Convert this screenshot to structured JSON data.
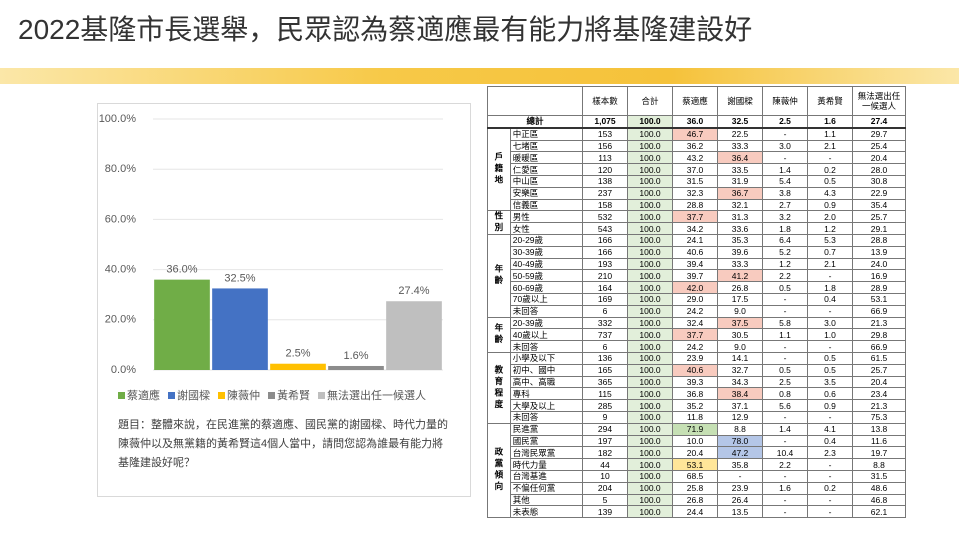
{
  "title": "2022基隆市長選舉，民眾認為蔡適應最有能力將基隆建設好",
  "chart_data": {
    "type": "bar",
    "categories": [
      "蔡適應",
      "謝國樑",
      "陳薇仲",
      "黃希賢",
      "無法選出任一候選人"
    ],
    "values": [
      36.0,
      32.5,
      2.5,
      1.6,
      27.4
    ],
    "value_labels": [
      "36.0%",
      "32.5%",
      "2.5%",
      "1.6%",
      "27.4%"
    ],
    "colors": [
      "#70ad47",
      "#4472c4",
      "#ffc000",
      "#8c8c8c",
      "#bfbfbf"
    ],
    "ylim": [
      0,
      100
    ],
    "yticks": [
      {
        "value": 0,
        "label": "0.0%"
      },
      {
        "value": 20,
        "label": "20.0%"
      },
      {
        "value": 40,
        "label": "40.0%"
      },
      {
        "value": 60,
        "label": "60.0%"
      },
      {
        "value": 80,
        "label": "80.0%"
      },
      {
        "value": 100,
        "label": "100.0%"
      }
    ],
    "grid": true
  },
  "question": "題目：整體來說，在民進黨的蔡適應、國民黨的謝國樑、時代力量的陳薇仲以及無黨籍的黃希賢這4個人當中，請問您認為誰最有能力將基隆建設好呢？",
  "table": {
    "header": [
      "樣本數",
      "合計",
      "蔡適應",
      "謝國樑",
      "陳薇仲",
      "黃希賢",
      "無法選出任一候選人"
    ],
    "total": {
      "label": "總計",
      "cells": [
        "1,075",
        "100.0",
        "36.0",
        "32.5",
        "2.5",
        "1.6",
        "27.4"
      ]
    },
    "groups": [
      {
        "name": "戶籍地",
        "rows": [
          {
            "label": "中正區",
            "cells": [
              "153",
              "100.0",
              {
                "text": "46.7",
                "color": "#f8cbbf"
              },
              "22.5",
              "-",
              "1.1",
              "29.7"
            ]
          },
          {
            "label": "七堵區",
            "cells": [
              "156",
              "100.0",
              "36.2",
              "33.3",
              "3.0",
              "2.1",
              "25.4"
            ]
          },
          {
            "label": "暖暖區",
            "cells": [
              "113",
              "100.0",
              "43.2",
              {
                "text": "36.4",
                "color": "#f8cbbf"
              },
              "-",
              "-",
              "20.4"
            ]
          },
          {
            "label": "仁愛區",
            "cells": [
              "120",
              "100.0",
              "37.0",
              "33.5",
              "1.4",
              "0.2",
              "28.0"
            ]
          },
          {
            "label": "中山區",
            "cells": [
              "138",
              "100.0",
              "31.5",
              "31.9",
              "5.4",
              "0.5",
              "30.8"
            ]
          },
          {
            "label": "安樂區",
            "cells": [
              "237",
              "100.0",
              "32.3",
              {
                "text": "36.7",
                "color": "#f8cbbf"
              },
              "3.8",
              "4.3",
              "22.9"
            ]
          },
          {
            "label": "信義區",
            "cells": [
              "158",
              "100.0",
              "28.8",
              "32.1",
              "2.7",
              "0.9",
              "35.4"
            ]
          }
        ]
      },
      {
        "name": "性別",
        "rows": [
          {
            "label": "男性",
            "cells": [
              "532",
              "100.0",
              {
                "text": "37.7",
                "color": "#f8cbbf"
              },
              "31.3",
              "3.2",
              "2.0",
              "25.7"
            ]
          },
          {
            "label": "女性",
            "cells": [
              "543",
              "100.0",
              "34.2",
              "33.6",
              "1.8",
              "1.2",
              "29.1"
            ]
          }
        ]
      },
      {
        "name": "年齡",
        "rows": [
          {
            "label": "20-29歲",
            "cells": [
              "166",
              "100.0",
              "24.1",
              "35.3",
              "6.4",
              "5.3",
              "28.8"
            ]
          },
          {
            "label": "30-39歲",
            "cells": [
              "166",
              "100.0",
              "40.6",
              "39.6",
              "5.2",
              "0.7",
              "13.9"
            ]
          },
          {
            "label": "40-49歲",
            "cells": [
              "193",
              "100.0",
              "39.4",
              "33.3",
              "1.2",
              "2.1",
              "24.0"
            ]
          },
          {
            "label": "50-59歲",
            "cells": [
              "210",
              "100.0",
              "39.7",
              {
                "text": "41.2",
                "color": "#f8cbbf"
              },
              "2.2",
              "-",
              "16.9"
            ]
          },
          {
            "label": "60-69歲",
            "cells": [
              "164",
              "100.0",
              {
                "text": "42.0",
                "color": "#f8cbbf"
              },
              "26.8",
              "0.5",
              "1.8",
              "28.9"
            ]
          },
          {
            "label": "70歲以上",
            "cells": [
              "169",
              "100.0",
              "29.0",
              "17.5",
              "-",
              "0.4",
              "53.1"
            ]
          },
          {
            "label": "未回答",
            "cells": [
              "6",
              "100.0",
              "24.2",
              "9.0",
              "-",
              "-",
              "66.9"
            ]
          }
        ]
      },
      {
        "name": "年齡",
        "rows": [
          {
            "label": "20-39歲",
            "cells": [
              "332",
              "100.0",
              "32.4",
              {
                "text": "37.5",
                "color": "#f8cbbf"
              },
              "5.8",
              "3.0",
              "21.3"
            ]
          },
          {
            "label": "40歲以上",
            "cells": [
              "737",
              "100.0",
              {
                "text": "37.7",
                "color": "#f8cbbf"
              },
              "30.5",
              "1.1",
              "1.0",
              "29.8"
            ]
          },
          {
            "label": "未回答",
            "cells": [
              "6",
              "100.0",
              "24.2",
              "9.0",
              "-",
              "-",
              "66.9"
            ]
          }
        ]
      },
      {
        "name": "教育程度",
        "rows": [
          {
            "label": "小學及以下",
            "cells": [
              "136",
              "100.0",
              "23.9",
              "14.1",
              "-",
              "0.5",
              "61.5"
            ]
          },
          {
            "label": "初中、國中",
            "cells": [
              "165",
              "100.0",
              {
                "text": "40.6",
                "color": "#f8cbbf"
              },
              "32.7",
              "0.5",
              "0.5",
              "25.7"
            ]
          },
          {
            "label": "高中、高職",
            "cells": [
              "365",
              "100.0",
              "39.3",
              "34.3",
              "2.5",
              "3.5",
              "20.4"
            ]
          },
          {
            "label": "專科",
            "cells": [
              "115",
              "100.0",
              "36.8",
              {
                "text": "38.4",
                "color": "#f8cbbf"
              },
              "0.8",
              "0.6",
              "23.4"
            ]
          },
          {
            "label": "大學及以上",
            "cells": [
              "285",
              "100.0",
              "35.2",
              "37.1",
              "5.6",
              "0.9",
              "21.3"
            ]
          },
          {
            "label": "未回答",
            "cells": [
              "9",
              "100.0",
              "11.8",
              "12.9",
              "-",
              "-",
              "75.3"
            ]
          }
        ]
      },
      {
        "name": "政黨傾向",
        "rows": [
          {
            "label": "民進黨",
            "cells": [
              "294",
              "100.0",
              {
                "text": "71.9",
                "color": "#c6e0b4"
              },
              "8.8",
              "1.4",
              "4.1",
              "13.8"
            ]
          },
          {
            "label": "國民黨",
            "cells": [
              "197",
              "100.0",
              "10.0",
              {
                "text": "78.0",
                "color": "#b4c6e7"
              },
              "-",
              "0.4",
              "11.6"
            ]
          },
          {
            "label": "台灣民眾黨",
            "cells": [
              "182",
              "100.0",
              "20.4",
              {
                "text": "47.2",
                "color": "#b4c6e7"
              },
              "10.4",
              "2.3",
              "19.7"
            ]
          },
          {
            "label": "時代力量",
            "cells": [
              "44",
              "100.0",
              {
                "text": "53.1",
                "color": "#ffe699"
              },
              "35.8",
              "2.2",
              "-",
              "8.8"
            ]
          },
          {
            "label": "台灣基進",
            "cells": [
              "10",
              "100.0",
              "68.5",
              "-",
              "-",
              "-",
              "31.5"
            ]
          },
          {
            "label": "不偏任何黨",
            "cells": [
              "204",
              "100.0",
              "25.8",
              "23.9",
              "1.6",
              "0.2",
              "48.6"
            ]
          },
          {
            "label": "其他",
            "cells": [
              "5",
              "100.0",
              "26.8",
              "26.4",
              "-",
              "-",
              "46.8"
            ]
          },
          {
            "label": "未表態",
            "cells": [
              "139",
              "100.0",
              "24.4",
              "13.5",
              "-",
              "-",
              "62.1"
            ]
          }
        ]
      }
    ]
  }
}
